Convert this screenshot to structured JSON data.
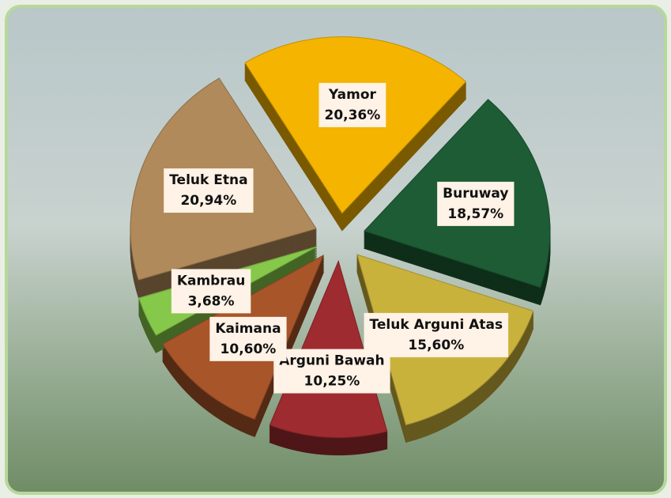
{
  "chart_data": {
    "type": "pie",
    "categories": [
      "Yamor",
      "Buruway",
      "Teluk Arguni Atas",
      "Arguni Bawah",
      "Kaimana",
      "Kambrau",
      "Teluk Etna"
    ],
    "values": [
      20.36,
      18.57,
      15.6,
      10.25,
      10.6,
      3.68,
      20.94
    ],
    "value_labels": [
      "20,36%",
      "18,57%",
      "15,60%",
      "10,25%",
      "10,60%",
      "3,68%",
      "20,94%"
    ],
    "colors": [
      "#f4b400",
      "#1d5c34",
      "#c9b23c",
      "#9e2b2f",
      "#a8552a",
      "#86c84a",
      "#b08a5a"
    ]
  }
}
